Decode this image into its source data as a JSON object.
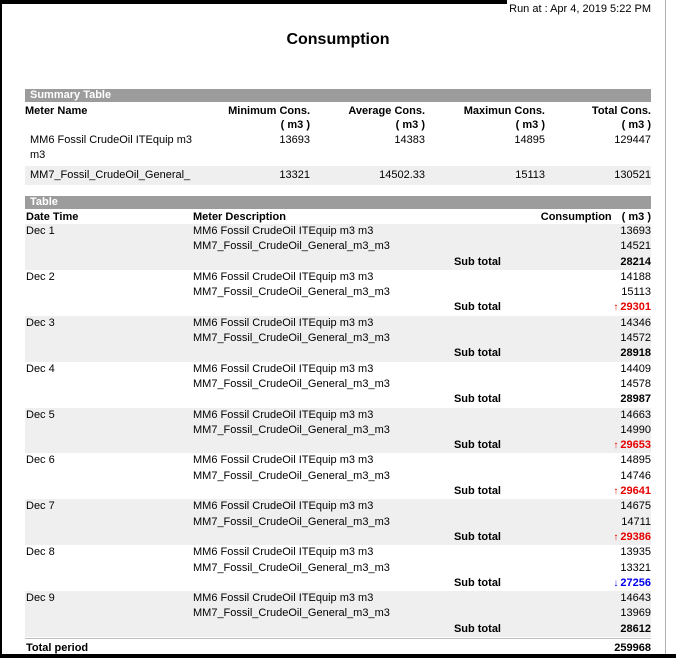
{
  "page": {
    "run_at": "Run at : Apr 4, 2019 5:22 PM",
    "title": "Consumption"
  },
  "colors": {
    "section_bar": "#9c9c9c",
    "stripe": "#efefef",
    "trend_up": "#e60000",
    "trend_down": "#0000ee"
  },
  "summary": {
    "section_label": "Summary Table",
    "col_meter": "Meter Name",
    "cols": [
      {
        "label": "Minimum Cons.",
        "unit": "( m3 )"
      },
      {
        "label": "Average Cons.",
        "unit": "( m3 )"
      },
      {
        "label": "Maximun Cons.",
        "unit": "( m3 )"
      },
      {
        "label": "Total Cons.",
        "unit": "( m3 )"
      }
    ],
    "rows": [
      {
        "name": "MM6 Fossil CrudeOil ITEquip m3 m3",
        "values": [
          "13693",
          "14383",
          "14895",
          "129447"
        ]
      },
      {
        "name": "MM7_Fossil_CrudeOil_General_",
        "values": [
          "13321",
          "14502.33",
          "15113",
          "130521"
        ]
      }
    ]
  },
  "detail": {
    "section_label": "Table",
    "col_date": "Date Time",
    "col_meter": "Meter Description",
    "col_cons": "Consumption",
    "col_unit": "( m3 )",
    "subtotal_label": "Sub total",
    "up_arrow": "↑",
    "down_arrow": "↓",
    "blocks": [
      {
        "date": "Dec 1",
        "meters": [
          {
            "name": "MM6 Fossil CrudeOil ITEquip m3 m3",
            "value": "13693"
          },
          {
            "name": "MM7_Fossil_CrudeOil_General_m3_m3",
            "value": "14521"
          }
        ],
        "subtotal": "28214",
        "trend": "none"
      },
      {
        "date": "Dec 2",
        "meters": [
          {
            "name": "MM6 Fossil CrudeOil ITEquip m3 m3",
            "value": "14188"
          },
          {
            "name": "MM7_Fossil_CrudeOil_General_m3_m3",
            "value": "15113"
          }
        ],
        "subtotal": "29301",
        "trend": "up"
      },
      {
        "date": "Dec 3",
        "meters": [
          {
            "name": "MM6 Fossil CrudeOil ITEquip m3 m3",
            "value": "14346"
          },
          {
            "name": "MM7_Fossil_CrudeOil_General_m3_m3",
            "value": "14572"
          }
        ],
        "subtotal": "28918",
        "trend": "none"
      },
      {
        "date": "Dec 4",
        "meters": [
          {
            "name": "MM6 Fossil CrudeOil ITEquip m3 m3",
            "value": "14409"
          },
          {
            "name": "MM7_Fossil_CrudeOil_General_m3_m3",
            "value": "14578"
          }
        ],
        "subtotal": "28987",
        "trend": "none"
      },
      {
        "date": "Dec 5",
        "meters": [
          {
            "name": "MM6 Fossil CrudeOil ITEquip m3 m3",
            "value": "14663"
          },
          {
            "name": "MM7_Fossil_CrudeOil_General_m3_m3",
            "value": "14990"
          }
        ],
        "subtotal": "29653",
        "trend": "up"
      },
      {
        "date": "Dec 6",
        "meters": [
          {
            "name": "MM6 Fossil CrudeOil ITEquip m3 m3",
            "value": "14895"
          },
          {
            "name": "MM7_Fossil_CrudeOil_General_m3_m3",
            "value": "14746"
          }
        ],
        "subtotal": "29641",
        "trend": "up"
      },
      {
        "date": "Dec 7",
        "meters": [
          {
            "name": "MM6 Fossil CrudeOil ITEquip m3 m3",
            "value": "14675"
          },
          {
            "name": "MM7_Fossil_CrudeOil_General_m3_m3",
            "value": "14711"
          }
        ],
        "subtotal": "29386",
        "trend": "up"
      },
      {
        "date": "Dec 8",
        "meters": [
          {
            "name": "MM6 Fossil CrudeOil ITEquip m3 m3",
            "value": "13935"
          },
          {
            "name": "MM7_Fossil_CrudeOil_General_m3_m3",
            "value": "13321"
          }
        ],
        "subtotal": "27256",
        "trend": "down"
      },
      {
        "date": "Dec 9",
        "meters": [
          {
            "name": "MM6 Fossil CrudeOil ITEquip m3 m3",
            "value": "14643"
          },
          {
            "name": "MM7_Fossil_CrudeOil_General_m3_m3",
            "value": "13969"
          }
        ],
        "subtotal": "28612",
        "trend": "none"
      }
    ],
    "total_label": "Total period",
    "total_value": "259968"
  }
}
